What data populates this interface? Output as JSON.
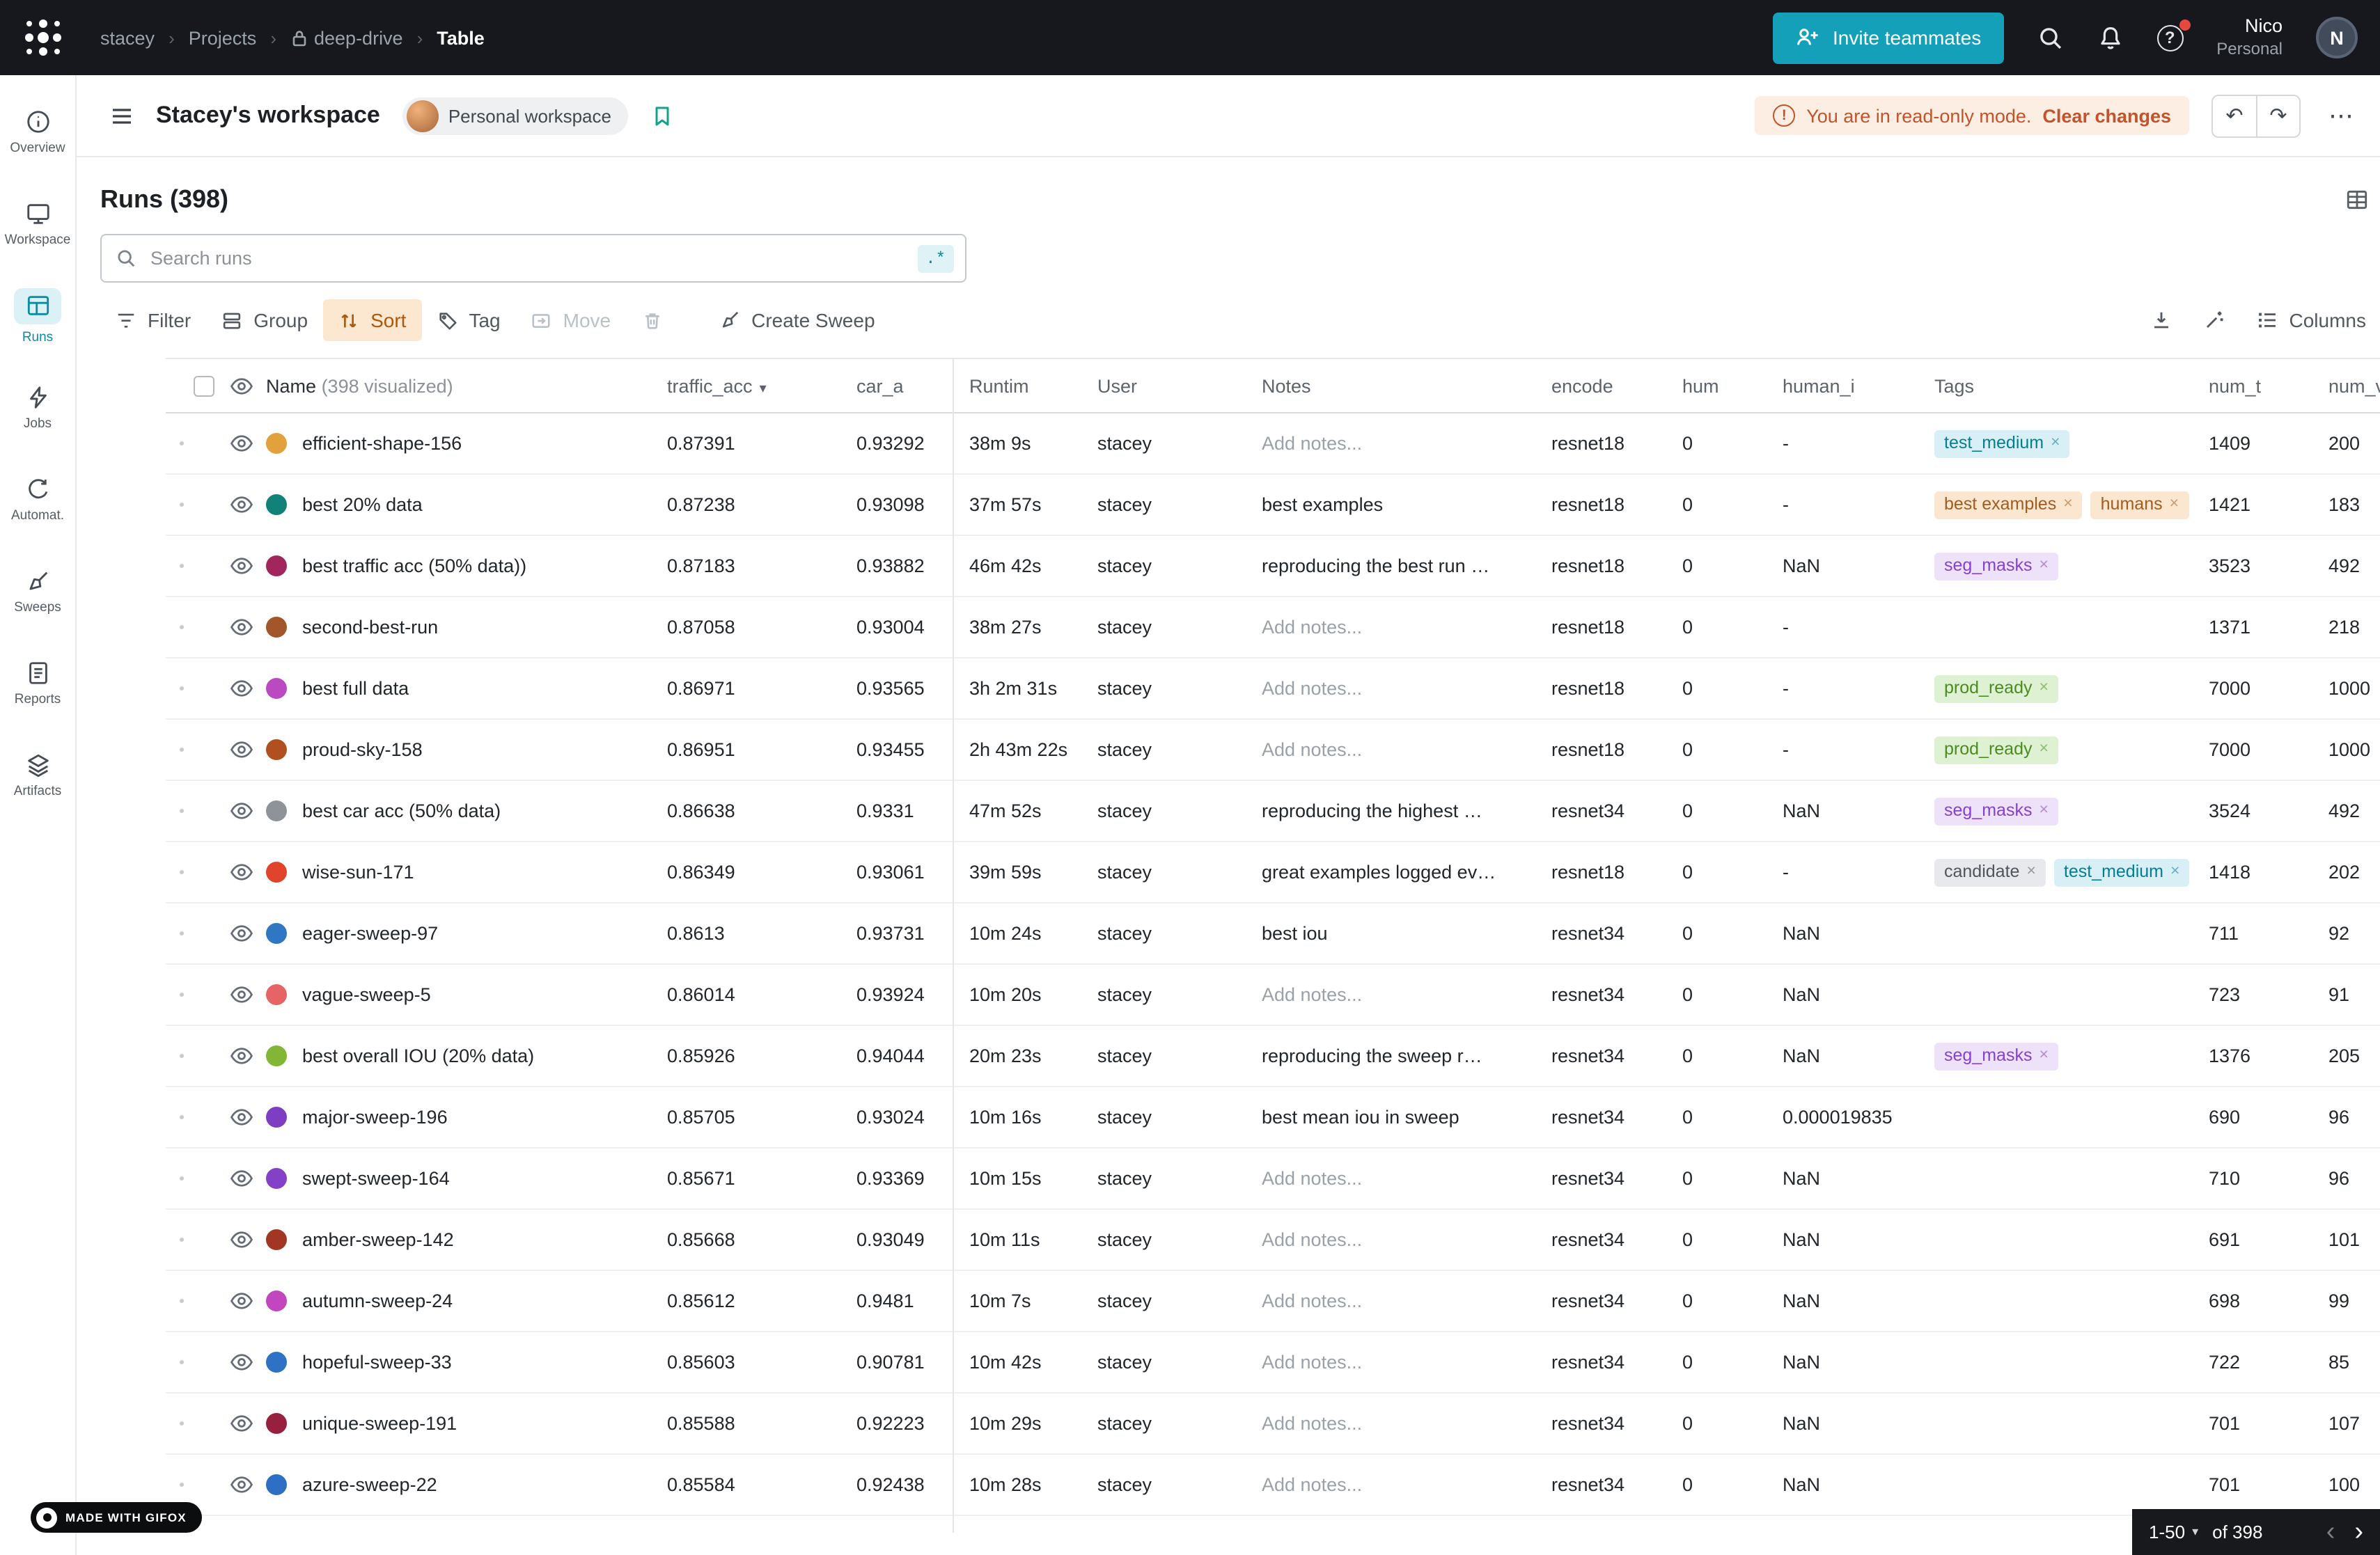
{
  "topnav": {
    "breadcrumb": [
      "stacey",
      "Projects",
      "deep-drive",
      "Table"
    ],
    "invite_label": "Invite teammates",
    "user_name": "Nico",
    "user_type": "Personal",
    "avatar_initial": "N"
  },
  "workspace_bar": {
    "title": "Stacey's workspace",
    "workspace_pill": "Personal workspace",
    "readonly_text": "You are in read-only mode.",
    "clear_changes": "Clear changes"
  },
  "sidebar": {
    "items": [
      {
        "label": "Overview",
        "icon": "overview-icon",
        "selected": false
      },
      {
        "label": "Workspace",
        "icon": "workspace-icon",
        "selected": false
      },
      {
        "label": "Runs",
        "icon": "runs-icon",
        "selected": true
      },
      {
        "label": "Jobs",
        "icon": "jobs-icon",
        "selected": false
      },
      {
        "label": "Automat.",
        "icon": "automations-icon",
        "selected": false
      },
      {
        "label": "Sweeps",
        "icon": "sweeps-icon",
        "selected": false
      },
      {
        "label": "Reports",
        "icon": "reports-icon",
        "selected": false
      },
      {
        "label": "Artifacts",
        "icon": "artifacts-icon",
        "selected": false
      }
    ]
  },
  "runs": {
    "title": "Runs (398)",
    "search_placeholder": "Search runs",
    "regex_label": ".*"
  },
  "toolbar": {
    "filter": "Filter",
    "group": "Group",
    "sort": "Sort",
    "tag": "Tag",
    "move": "Move",
    "create_sweep": "Create Sweep",
    "columns": "Columns"
  },
  "table": {
    "headers": {
      "name": "Name",
      "name_suffix": "(398 visualized)",
      "traffic": "traffic_acc",
      "car": "car_a",
      "runtime": "Runtim",
      "user": "User",
      "notes": "Notes",
      "encoder": "encode",
      "hum": "hum",
      "human": "human_i",
      "tags": "Tags",
      "num_t": "num_t",
      "num_v": "num_v"
    },
    "rows": [
      {
        "name": "efficient-shape-156",
        "dot": "#e1a23d",
        "acc": "0.87391",
        "car": "0.93292",
        "runtime": "38m 9s",
        "user": "stacey",
        "note": "Add notes...",
        "note_placeholder": true,
        "encoder": "resnet18",
        "hum": "0",
        "human": "-",
        "tags": [
          {
            "text": "test_medium",
            "color": "cyan"
          }
        ],
        "num_t": "1409",
        "num_v": "200",
        "cut": true
      },
      {
        "name": "best 20% data",
        "dot": "#118277",
        "acc": "0.87238",
        "car": "0.93098",
        "runtime": "37m 57s",
        "user": "stacey",
        "note": "best examples",
        "note_placeholder": false,
        "encoder": "resnet18",
        "hum": "0",
        "human": "-",
        "tags": [
          {
            "text": "best examples",
            "color": "orange"
          },
          {
            "text": "humans",
            "color": "orange"
          }
        ],
        "num_t": "1421",
        "num_v": "183",
        "cut": true
      },
      {
        "name": "best traffic acc (50% data))",
        "dot": "#a0265c",
        "acc": "0.87183",
        "car": "0.93882",
        "runtime": "46m 42s",
        "user": "stacey",
        "note": "reproducing the best run …",
        "note_placeholder": false,
        "encoder": "resnet18",
        "hum": "0",
        "human": "NaN",
        "tags": [
          {
            "text": "seg_masks",
            "color": "purple"
          }
        ],
        "num_t": "3523",
        "num_v": "492",
        "cut": true
      },
      {
        "name": "second-best-run",
        "dot": "#a4562b",
        "acc": "0.87058",
        "car": "0.93004",
        "runtime": "38m 27s",
        "user": "stacey",
        "note": "Add notes...",
        "note_placeholder": true,
        "encoder": "resnet18",
        "hum": "0",
        "human": "-",
        "tags": [],
        "num_t": "1371",
        "num_v": "218",
        "cut": true
      },
      {
        "name": "best full data",
        "dot": "#bb4ac1",
        "acc": "0.86971",
        "car": "0.93565",
        "runtime": "3h 2m 31s",
        "user": "stacey",
        "note": "Add notes...",
        "note_placeholder": true,
        "encoder": "resnet18",
        "hum": "0",
        "human": "-",
        "tags": [
          {
            "text": "prod_ready",
            "color": "green"
          }
        ],
        "num_t": "7000",
        "num_v": "1000",
        "cut": true
      },
      {
        "name": "proud-sky-158",
        "dot": "#b0501f",
        "acc": "0.86951",
        "car": "0.93455",
        "runtime": "2h 43m 22s",
        "user": "stacey",
        "note": "Add notes...",
        "note_placeholder": true,
        "encoder": "resnet18",
        "hum": "0",
        "human": "-",
        "tags": [
          {
            "text": "prod_ready",
            "color": "green"
          }
        ],
        "num_t": "7000",
        "num_v": "1000",
        "cut": true
      },
      {
        "name": "best car acc (50% data)",
        "dot": "#8e9399",
        "acc": "0.86638",
        "car": "0.9331",
        "runtime": "47m 52s",
        "user": "stacey",
        "note": "reproducing the highest …",
        "note_placeholder": false,
        "encoder": "resnet34",
        "hum": "0",
        "human": "NaN",
        "tags": [
          {
            "text": "seg_masks",
            "color": "purple"
          }
        ],
        "num_t": "3524",
        "num_v": "492",
        "cut": true
      },
      {
        "name": "wise-sun-171",
        "dot": "#e0442a",
        "acc": "0.86349",
        "car": "0.93061",
        "runtime": "39m 59s",
        "user": "stacey",
        "note": "great examples logged ev…",
        "note_placeholder": false,
        "encoder": "resnet18",
        "hum": "0",
        "human": "-",
        "tags": [
          {
            "text": "candidate",
            "color": "gray"
          },
          {
            "text": "test_medium",
            "color": "cyan"
          }
        ],
        "num_t": "1418",
        "num_v": "202",
        "cut": true
      },
      {
        "name": "eager-sweep-97",
        "dot": "#2f77c3",
        "acc": "0.8613",
        "car": "0.93731",
        "runtime": "10m 24s",
        "user": "stacey",
        "note": "best iou",
        "note_placeholder": false,
        "encoder": "resnet34",
        "hum": "0",
        "human": "NaN",
        "tags": [],
        "num_t": "711",
        "num_v": "92",
        "cut": true
      },
      {
        "name": "vague-sweep-5",
        "dot": "#e66465",
        "acc": "0.86014",
        "car": "0.93924",
        "runtime": "10m 20s",
        "user": "stacey",
        "note": "Add notes...",
        "note_placeholder": true,
        "encoder": "resnet34",
        "hum": "0",
        "human": "NaN",
        "tags": [],
        "num_t": "723",
        "num_v": "91",
        "cut": true
      },
      {
        "name": "best overall IOU (20% data)",
        "dot": "#82b637",
        "acc": "0.85926",
        "car": "0.94044",
        "runtime": "20m 23s",
        "user": "stacey",
        "note": "reproducing the sweep r…",
        "note_placeholder": false,
        "encoder": "resnet34",
        "hum": "0",
        "human": "NaN",
        "tags": [
          {
            "text": "seg_masks",
            "color": "purple"
          }
        ],
        "num_t": "1376",
        "num_v": "205",
        "cut": true
      },
      {
        "name": "major-sweep-196",
        "dot": "#7e3ec4",
        "acc": "0.85705",
        "car": "0.93024",
        "runtime": "10m 16s",
        "user": "stacey",
        "note": "best mean iou in sweep",
        "note_placeholder": false,
        "encoder": "resnet34",
        "hum": "0",
        "human": "0.000019835",
        "tags": [],
        "num_t": "690",
        "num_v": "96",
        "cut": true
      },
      {
        "name": "swept-sweep-164",
        "dot": "#8440c6",
        "acc": "0.85671",
        "car": "0.93369",
        "runtime": "10m 15s",
        "user": "stacey",
        "note": "Add notes...",
        "note_placeholder": true,
        "encoder": "resnet34",
        "hum": "0",
        "human": "NaN",
        "tags": [],
        "num_t": "710",
        "num_v": "96",
        "cut": true
      },
      {
        "name": "amber-sweep-142",
        "dot": "#a33524",
        "acc": "0.85668",
        "car": "0.93049",
        "runtime": "10m 11s",
        "user": "stacey",
        "note": "Add notes...",
        "note_placeholder": true,
        "encoder": "resnet34",
        "hum": "0",
        "human": "NaN",
        "tags": [],
        "num_t": "691",
        "num_v": "101",
        "cut": true
      },
      {
        "name": "autumn-sweep-24",
        "dot": "#c246bd",
        "acc": "0.85612",
        "car": "0.9481",
        "runtime": "10m 7s",
        "user": "stacey",
        "note": "Add notes...",
        "note_placeholder": true,
        "encoder": "resnet34",
        "hum": "0",
        "human": "NaN",
        "tags": [],
        "num_t": "698",
        "num_v": "99",
        "cut": true
      },
      {
        "name": "hopeful-sweep-33",
        "dot": "#2d72c4",
        "acc": "0.85603",
        "car": "0.90781",
        "runtime": "10m 42s",
        "user": "stacey",
        "note": "Add notes...",
        "note_placeholder": true,
        "encoder": "resnet34",
        "hum": "0",
        "human": "NaN",
        "tags": [],
        "num_t": "722",
        "num_v": "85",
        "cut": true
      },
      {
        "name": "unique-sweep-191",
        "dot": "#97203f",
        "acc": "0.85588",
        "car": "0.92223",
        "runtime": "10m 29s",
        "user": "stacey",
        "note": "Add notes...",
        "note_placeholder": true,
        "encoder": "resnet34",
        "hum": "0",
        "human": "NaN",
        "tags": [],
        "num_t": "701",
        "num_v": "107",
        "cut": true
      },
      {
        "name": "azure-sweep-22",
        "dot": "#2d6fc4",
        "acc": "0.85584",
        "car": "0.92438",
        "runtime": "10m 28s",
        "user": "stacey",
        "note": "Add notes...",
        "note_placeholder": true,
        "encoder": "resnet34",
        "hum": "0",
        "human": "NaN",
        "tags": [],
        "num_t": "701",
        "num_v": "100",
        "cut": true
      },
      {
        "name": "",
        "dot": "#8c2332",
        "acc": "",
        "car": "",
        "runtime": "",
        "user": "",
        "note": "",
        "note_placeholder": false,
        "encoder": "",
        "hum": "",
        "human": "",
        "tags": [],
        "num_t": "",
        "num_v": "",
        "cut": false
      }
    ]
  },
  "pagination": {
    "range": "1-50",
    "of": "of 398"
  },
  "badge": {
    "text": "MADE WITH GIFOX"
  },
  "colors": {
    "accent_teal": "#14a0b9",
    "selected_teal": "#0b8ca3",
    "sort_active_bg": "#fce8d1",
    "sort_active_text": "#a8590f",
    "warning_bg": "#fdeee3",
    "warning_text": "#c2532a",
    "navbar_bg": "#16181d"
  }
}
